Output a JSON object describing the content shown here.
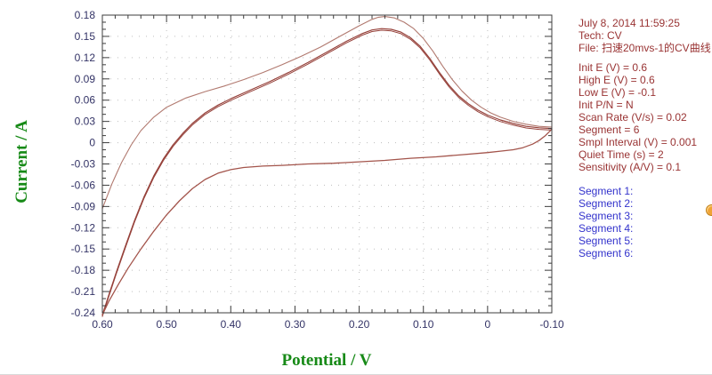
{
  "chart_data": {
    "type": "line",
    "title": "",
    "xlabel": "Potential / V",
    "ylabel": "Current / A",
    "xlim": [
      0.6,
      -0.1
    ],
    "ylim": [
      -0.24,
      0.18
    ],
    "x_axis_reversed": true,
    "grid": "dotted",
    "legend": "none",
    "x_ticks": [
      0.6,
      0.5,
      0.4,
      0.3,
      0.2,
      0.1,
      0.0,
      -0.1
    ],
    "x_tick_labels": [
      "0.60",
      "0.50",
      "0.40",
      "0.30",
      "0.20",
      "0.10",
      "0",
      "-0.10"
    ],
    "x_minor_step": 0.02,
    "y_ticks": [
      0.18,
      0.15,
      0.12,
      0.09,
      0.06,
      0.03,
      0.0,
      -0.03,
      -0.06,
      -0.09,
      -0.12,
      -0.15,
      -0.18,
      -0.21,
      -0.24
    ],
    "y_tick_labels": [
      "0.18",
      "0.15",
      "0.12",
      "0.09",
      "0.06",
      "0.03",
      "0",
      "-0.03",
      "-0.06",
      "-0.09",
      "-0.12",
      "-0.15",
      "-0.18",
      "-0.21",
      "-0.24"
    ],
    "y_minor_step": 0.01,
    "tick_label_color": "#333366",
    "axis_title_color": "#178a17",
    "frame_color": "#3c3c3c",
    "grid_color": "#bfbfbf",
    "series": [
      {
        "name": "segment-1-forward-scan",
        "color": "#b1796f",
        "width": 1.1,
        "points": [
          [
            0.6,
            -0.093
          ],
          [
            0.585,
            -0.058
          ],
          [
            0.57,
            -0.028
          ],
          [
            0.555,
            -0.003
          ],
          [
            0.54,
            0.017
          ],
          [
            0.52,
            0.036
          ],
          [
            0.5,
            0.05
          ],
          [
            0.47,
            0.063
          ],
          [
            0.44,
            0.072
          ],
          [
            0.41,
            0.08
          ],
          [
            0.38,
            0.089
          ],
          [
            0.35,
            0.099
          ],
          [
            0.32,
            0.11
          ],
          [
            0.29,
            0.122
          ],
          [
            0.26,
            0.135
          ],
          [
            0.23,
            0.15
          ],
          [
            0.2,
            0.165
          ],
          [
            0.18,
            0.174
          ],
          [
            0.17,
            0.177
          ],
          [
            0.16,
            0.178
          ],
          [
            0.145,
            0.176
          ],
          [
            0.13,
            0.17
          ],
          [
            0.115,
            0.161
          ],
          [
            0.1,
            0.147
          ],
          [
            0.085,
            0.129
          ],
          [
            0.07,
            0.108
          ],
          [
            0.055,
            0.089
          ],
          [
            0.04,
            0.073
          ],
          [
            0.025,
            0.06
          ],
          [
            0.01,
            0.05
          ],
          [
            -0.005,
            0.042
          ],
          [
            -0.02,
            0.036
          ],
          [
            -0.04,
            0.03
          ],
          [
            -0.06,
            0.026
          ],
          [
            -0.08,
            0.023
          ],
          [
            -0.1,
            0.022
          ]
        ]
      },
      {
        "name": "segments-3-5-forward-scans",
        "color": "#96413a",
        "width": 1.2,
        "offset_copy": 1.8,
        "points": [
          [
            0.6,
            -0.243
          ],
          [
            0.59,
            -0.215
          ],
          [
            0.578,
            -0.182
          ],
          [
            0.565,
            -0.148
          ],
          [
            0.55,
            -0.11
          ],
          [
            0.535,
            -0.076
          ],
          [
            0.52,
            -0.047
          ],
          [
            0.505,
            -0.023
          ],
          [
            0.49,
            -0.003
          ],
          [
            0.475,
            0.013
          ],
          [
            0.46,
            0.027
          ],
          [
            0.44,
            0.042
          ],
          [
            0.42,
            0.053
          ],
          [
            0.4,
            0.062
          ],
          [
            0.37,
            0.074
          ],
          [
            0.34,
            0.086
          ],
          [
            0.31,
            0.099
          ],
          [
            0.28,
            0.113
          ],
          [
            0.25,
            0.128
          ],
          [
            0.22,
            0.143
          ],
          [
            0.195,
            0.154
          ],
          [
            0.18,
            0.159
          ],
          [
            0.165,
            0.161
          ],
          [
            0.15,
            0.16
          ],
          [
            0.135,
            0.156
          ],
          [
            0.12,
            0.148
          ],
          [
            0.105,
            0.136
          ],
          [
            0.09,
            0.119
          ],
          [
            0.075,
            0.099
          ],
          [
            0.06,
            0.081
          ],
          [
            0.045,
            0.066
          ],
          [
            0.03,
            0.055
          ],
          [
            0.015,
            0.046
          ],
          [
            0.0,
            0.039
          ],
          [
            -0.02,
            0.032
          ],
          [
            -0.04,
            0.027
          ],
          [
            -0.06,
            0.023
          ],
          [
            -0.08,
            0.021
          ],
          [
            -0.1,
            0.02
          ]
        ]
      },
      {
        "name": "segments-2-4-6-return-scans",
        "color": "#a3544b",
        "width": 1.3,
        "points": [
          [
            -0.1,
            0.019
          ],
          [
            -0.09,
            0.01
          ],
          [
            -0.08,
            0.003
          ],
          [
            -0.07,
            -0.002
          ],
          [
            -0.055,
            -0.007
          ],
          [
            -0.04,
            -0.01
          ],
          [
            -0.02,
            -0.012
          ],
          [
            0.0,
            -0.014
          ],
          [
            0.04,
            -0.017
          ],
          [
            0.08,
            -0.02
          ],
          [
            0.12,
            -0.022
          ],
          [
            0.16,
            -0.025
          ],
          [
            0.2,
            -0.027
          ],
          [
            0.24,
            -0.029
          ],
          [
            0.28,
            -0.03
          ],
          [
            0.32,
            -0.032
          ],
          [
            0.35,
            -0.033
          ],
          [
            0.38,
            -0.035
          ],
          [
            0.4,
            -0.038
          ],
          [
            0.42,
            -0.043
          ],
          [
            0.44,
            -0.052
          ],
          [
            0.46,
            -0.065
          ],
          [
            0.48,
            -0.082
          ],
          [
            0.5,
            -0.102
          ],
          [
            0.52,
            -0.125
          ],
          [
            0.54,
            -0.15
          ],
          [
            0.56,
            -0.177
          ],
          [
            0.575,
            -0.2
          ],
          [
            0.59,
            -0.224
          ],
          [
            0.6,
            -0.243
          ]
        ]
      }
    ]
  },
  "panel": {
    "timestamp": "July 8, 2014   11:59:25",
    "tech_line": "Tech: CV",
    "file_line": "File: 扫速20mvs-1的CV曲线",
    "params": [
      "Init E (V) = 0.6",
      "High E (V) = 0.6",
      "Low E (V) = -0.1",
      "Init P/N = N",
      "Scan Rate (V/s) = 0.02",
      "Segment = 6",
      "Smpl Interval (V) = 0.001",
      "Quiet Time (s) = 2",
      "Sensitivity (A/V) = 0.1"
    ],
    "segments": [
      "Segment 1:",
      "Segment 2:",
      "Segment 3:",
      "Segment 4:",
      "Segment 5:",
      "Segment 6:"
    ],
    "text_color": "#993333",
    "segment_text_color": "#3333cc"
  },
  "icons": {
    "orange_marker": "orange-circle"
  }
}
